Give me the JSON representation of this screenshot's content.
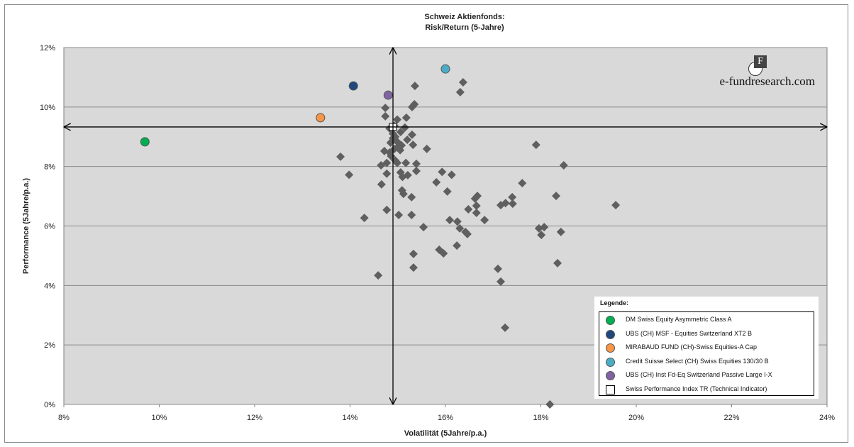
{
  "chart_data": {
    "type": "scatter",
    "title": [
      "Schweiz Aktienfonds:",
      "Risk/Return (5-Jahre)"
    ],
    "xlabel": "Volatilität (5Jahre/p.a.)",
    "ylabel": "Performance (5Jahre/p.a.)",
    "xlim": [
      8,
      24
    ],
    "ylim": [
      0,
      12
    ],
    "xticks": [
      8,
      10,
      12,
      14,
      16,
      18,
      20,
      22,
      24
    ],
    "yticks": [
      0,
      2,
      4,
      6,
      8,
      10,
      12
    ],
    "xtick_labels": [
      "8%",
      "10%",
      "12%",
      "14%",
      "16%",
      "18%",
      "20%",
      "22%",
      "24%"
    ],
    "ytick_labels": [
      "0%",
      "2%",
      "4%",
      "6%",
      "8%",
      "10%",
      "12%"
    ],
    "grid": "horizontal",
    "crosshair": {
      "x": 14.9,
      "y": 9.33
    },
    "background": "#d9d9d9",
    "peer_color": "#5f5f5f",
    "peers": [
      [
        15.36,
        10.71
      ],
      [
        16.37,
        10.83
      ],
      [
        16.31,
        10.5
      ],
      [
        15.35,
        10.09
      ],
      [
        15.3,
        10.0
      ],
      [
        14.74,
        9.97
      ],
      [
        14.74,
        9.69
      ],
      [
        15.18,
        9.64
      ],
      [
        14.99,
        9.58
      ],
      [
        14.93,
        9.37
      ],
      [
        14.83,
        9.28
      ],
      [
        15.15,
        9.31
      ],
      [
        15.3,
        9.07
      ],
      [
        15.06,
        9.16
      ],
      [
        14.9,
        8.95
      ],
      [
        14.99,
        8.83
      ],
      [
        15.08,
        8.71
      ],
      [
        14.93,
        8.59
      ],
      [
        15.61,
        8.59
      ],
      [
        14.83,
        8.47
      ],
      [
        14.72,
        8.52
      ],
      [
        15.32,
        8.73
      ],
      [
        13.8,
        8.33
      ],
      [
        14.86,
        8.35
      ],
      [
        14.65,
        8.04
      ],
      [
        14.77,
        8.12
      ],
      [
        14.99,
        8.12
      ],
      [
        15.17,
        8.12
      ],
      [
        15.39,
        8.09
      ],
      [
        15.06,
        7.8
      ],
      [
        15.39,
        7.85
      ],
      [
        13.98,
        7.72
      ],
      [
        15.21,
        7.71
      ],
      [
        14.77,
        7.76
      ],
      [
        14.66,
        7.4
      ],
      [
        15.93,
        7.82
      ],
      [
        16.13,
        7.72
      ],
      [
        15.81,
        7.47
      ],
      [
        16.04,
        7.16
      ],
      [
        15.09,
        7.2
      ],
      [
        15.12,
        7.08
      ],
      [
        15.29,
        6.97
      ],
      [
        14.77,
        6.54
      ],
      [
        14.3,
        6.27
      ],
      [
        15.02,
        6.37
      ],
      [
        15.29,
        6.37
      ],
      [
        15.54,
        5.96
      ],
      [
        16.09,
        6.2
      ],
      [
        16.25,
        6.15
      ],
      [
        16.3,
        5.92
      ],
      [
        16.42,
        5.8
      ],
      [
        16.46,
        5.73
      ],
      [
        16.48,
        6.56
      ],
      [
        16.62,
        6.92
      ],
      [
        16.67,
        7.01
      ],
      [
        16.65,
        6.68
      ],
      [
        16.65,
        6.44
      ],
      [
        16.82,
        6.2
      ],
      [
        17.16,
        6.7
      ],
      [
        17.26,
        6.77
      ],
      [
        17.4,
        6.97
      ],
      [
        17.41,
        6.75
      ],
      [
        17.61,
        7.44
      ],
      [
        17.9,
        8.73
      ],
      [
        18.48,
        8.04
      ],
      [
        18.32,
        7.01
      ],
      [
        19.57,
        6.7
      ],
      [
        17.96,
        5.92
      ],
      [
        18.07,
        5.96
      ],
      [
        18.01,
        5.7
      ],
      [
        18.42,
        5.8
      ],
      [
        15.87,
        5.2
      ],
      [
        15.96,
        5.08
      ],
      [
        15.33,
        5.06
      ],
      [
        15.33,
        4.6
      ],
      [
        16.24,
        5.34
      ],
      [
        14.59,
        4.34
      ],
      [
        17.1,
        4.56
      ],
      [
        17.16,
        4.13
      ],
      [
        17.25,
        2.58
      ],
      [
        18.35,
        4.75
      ],
      [
        18.19,
        0.0
      ],
      [
        14.95,
        9.0
      ],
      [
        14.85,
        8.8
      ],
      [
        15.05,
        8.55
      ],
      [
        15.2,
        8.9
      ],
      [
        14.95,
        8.2
      ],
      [
        15.1,
        7.65
      ],
      [
        14.9,
        9.1
      ],
      [
        15.0,
        8.65
      ]
    ],
    "legend_title": "Legende:",
    "legend_position": "bottom-right",
    "series": [
      {
        "name": "DM Swiss Equity Asymmetric Class A",
        "color": "#00b050",
        "x": 9.7,
        "y": 8.83
      },
      {
        "name": "UBS (CH) MSF - Equities Switzerland XT2 B",
        "color": "#1f497d",
        "x": 14.07,
        "y": 10.71
      },
      {
        "name": "MIRABAUD FUND (CH)-Swiss Equities-A Cap",
        "color": "#f79646",
        "x": 13.38,
        "y": 9.64
      },
      {
        "name": "Credit Suisse Select (CH) Swiss Equities 130/30 B",
        "color": "#4bacc6",
        "x": 16.0,
        "y": 11.28
      },
      {
        "name": "UBS (CH) Inst Fd-Eq Switzerland Passive Large I-X",
        "color": "#8064a2",
        "x": 14.8,
        "y": 10.4
      },
      {
        "name": "Swiss Performance Index TR (Technical Indicator)",
        "color": "#ffffff",
        "x": 14.9,
        "y": 9.33,
        "marker": "square"
      }
    ]
  },
  "logo": {
    "text": "e-fundresearch.com",
    "letter": "F"
  }
}
